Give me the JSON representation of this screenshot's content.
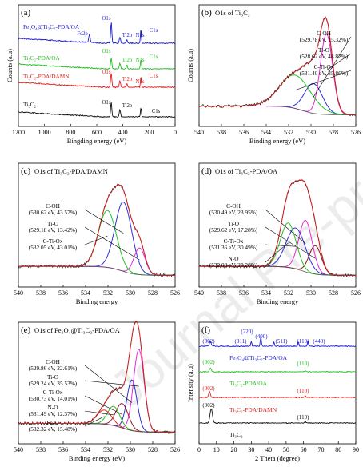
{
  "chart_data": [
    {
      "panel": "(a)",
      "type": "line",
      "title": "",
      "xlabel": "Bingding energy (eV)",
      "ylabel": "Counts (a.u)",
      "xlim": [
        1300,
        0
      ],
      "xticks": [
        "1200",
        "1000",
        "800",
        "600",
        "400",
        "200",
        "0"
      ],
      "series": [
        {
          "name": "Fe3O4@Ti3C2-PDA/OA",
          "label": "Fe₃O₄@Ti₃C₂-PDA/OA",
          "color": "#1a1ad6"
        },
        {
          "name": "Ti3C2-PDA/OA",
          "label": "Ti₃C₂-PDA/OA",
          "color": "#22c122"
        },
        {
          "name": "Ti3C2-PDA/DAMN",
          "label": "Ti₃C₂-PDA/DAMN",
          "color": "#e0201f"
        },
        {
          "name": "Ti3C2",
          "label": "Ti₃C₂",
          "color": "#111111"
        }
      ],
      "annotations": [
        "Fe2p",
        "O1s",
        "Ti2p",
        "N1s",
        "C1s",
        "O1s",
        "Ti2p",
        "N1s",
        "C1s",
        "O1s",
        "Ti2p",
        "N1s",
        "C1s",
        "O1s",
        "Ti2p",
        "C1s"
      ]
    },
    {
      "panel": "(b)",
      "type": "line",
      "title": "O1s of Ti₃C₂",
      "xlabel": "Binding energy (eV)",
      "ylabel": "Counts (a.u)",
      "xlim": [
        540,
        526
      ],
      "xticks": [
        "540",
        "538",
        "536",
        "534",
        "532",
        "530",
        "528",
        "526"
      ],
      "peaks": [
        {
          "label": "C-OH",
          "value": "(529.78 eV, 15.32%)",
          "center": 529.78,
          "height": 0.34,
          "width": 0.8,
          "color": "#2f2fd8"
        },
        {
          "label": "Ti-O",
          "value": "(528.62 eV, 48.82%)",
          "center": 528.62,
          "height": 0.92,
          "width": 0.55,
          "color": "#e52bd6"
        },
        {
          "label": "C-Ti-Ox",
          "value": "(531.40 eV, 35.86%)",
          "center": 531.4,
          "height": 0.38,
          "width": 1.4,
          "color": "#25c025"
        }
      ]
    },
    {
      "panel": "(c)",
      "type": "line",
      "title": "O1s of Ti₃C₂-PDA/DAMN",
      "xlabel": "Binding energy",
      "ylabel": "",
      "xlim": [
        540,
        526
      ],
      "xticks": [
        "540",
        "538",
        "536",
        "534",
        "532",
        "530",
        "528",
        "526"
      ],
      "peaks": [
        {
          "label": "C-OH",
          "value": "(530.62 eV, 43.57%)",
          "center": 530.62,
          "height": 0.78,
          "width": 0.75,
          "color": "#2f2fd8"
        },
        {
          "label": "Ti-O",
          "value": "(529.18 eV, 13.42%)",
          "center": 529.18,
          "height": 0.3,
          "width": 0.5,
          "color": "#e52bd6"
        },
        {
          "label": "C-Ti-Ox",
          "value": "(532.05 eV, 43.01%)",
          "center": 532.05,
          "height": 0.64,
          "width": 0.8,
          "color": "#25c025"
        }
      ]
    },
    {
      "panel": "(d)",
      "type": "line",
      "title": "O1s of Ti₃C₂-PDA/OA",
      "xlabel": "Binding energy",
      "ylabel": "",
      "xlim": [
        540,
        526
      ],
      "xticks": [
        "540",
        "538",
        "536",
        "534",
        "532",
        "530",
        "528",
        "526"
      ],
      "peaks": [
        {
          "label": "C-OH",
          "value": "(530.49 eV, 23.95%)",
          "center": 530.49,
          "height": 0.58,
          "width": 0.6,
          "color": "#e52bd6"
        },
        {
          "label": "Ti-O",
          "value": "(529.62 eV, 17.28%)",
          "center": 529.62,
          "height": 0.32,
          "width": 0.55,
          "color": "#8b1a1a"
        },
        {
          "label": "C-Ti-Ox",
          "value": "(531.36 eV, 30.49%)",
          "center": 531.36,
          "height": 0.46,
          "width": 0.85,
          "color": "#2f2fd8"
        },
        {
          "label": "N-O",
          "value": "(532.03 eV, 28.28%)",
          "center": 532.03,
          "height": 0.5,
          "width": 0.7,
          "color": "#25c025"
        }
      ]
    },
    {
      "panel": "(e)",
      "type": "line",
      "title": "O1s of Fe₃O₄@Ti₃C₂-PDA/OA",
      "xlabel": "Binding energy (eV)",
      "ylabel": "",
      "xlim": [
        540,
        526
      ],
      "xticks": [
        "540",
        "538",
        "536",
        "534",
        "532",
        "530",
        "528",
        "526"
      ],
      "peaks": [
        {
          "label": "C-OH",
          "value": "(529.86 eV, 22.61%)",
          "center": 529.86,
          "height": 0.58,
          "width": 0.45,
          "color": "#2f2fd8"
        },
        {
          "label": "Ti-O",
          "value": "(529.24 eV, 35.53%)",
          "center": 529.24,
          "height": 0.94,
          "width": 0.48,
          "color": "#e52bd6"
        },
        {
          "label": "C-Ti-Ox",
          "value": "(530.73 eV, 14.01%)",
          "center": 530.73,
          "height": 0.28,
          "width": 0.55,
          "color": "#8b1a1a"
        },
        {
          "label": "N-O",
          "value": "(531.49 eV, 12.37%)",
          "center": 531.49,
          "height": 0.22,
          "width": 0.55,
          "color": "#25c025"
        },
        {
          "label": "Fe-O",
          "value": "(532.32 eV, 15.48%)",
          "center": 532.32,
          "height": 0.16,
          "width": 0.65,
          "color": "#e0201f"
        }
      ]
    },
    {
      "panel": "(f)",
      "type": "line",
      "title": "",
      "xlabel": "2 Theta (degree)",
      "ylabel": "Intensity (a.u)",
      "xlim": [
        0,
        90
      ],
      "xticks": [
        "0",
        "10",
        "20",
        "30",
        "40",
        "50",
        "60",
        "70",
        "80",
        "90"
      ],
      "series": [
        {
          "name": "Fe3O4@Ti3C2-PDA/OA",
          "label": "Fe₃O₄@Ti₃C₂-PDA/OA",
          "color": "#1a1ad6"
        },
        {
          "name": "Ti3C2-PDA/OA",
          "label": "Ti₃C₂-PDA/OA",
          "color": "#22c122"
        },
        {
          "name": "Ti3C2-PDA/DAMN",
          "label": "Ti₃C₂-PDA/DAMN",
          "color": "#e0201f"
        },
        {
          "name": "Ti3C2",
          "label": "Ti₃C₂",
          "color": "#111111"
        }
      ],
      "annotations": [
        "(002)",
        "(311)",
        "(220)",
        "(400)",
        "(511)",
        "(110)",
        "(440)",
        "(002)",
        "(110)",
        "(002)",
        "(110)",
        "(002)",
        "(110)"
      ]
    }
  ],
  "watermark": "Journal Pre-proofs"
}
